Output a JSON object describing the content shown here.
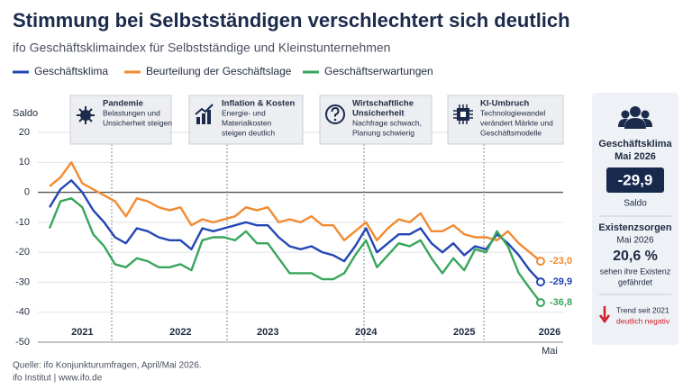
{
  "chart_data": {
    "type": "line",
    "title": "Stimmung bei Selbstständigen verschlechtert sich deutlich",
    "subtitle": "ifo Geschäftsklimaindex für Selbstständige und Kleinstunternehmen",
    "y_label": "Saldo",
    "categories": [
      null,
      null,
      null,
      "2021",
      null,
      null,
      null,
      null,
      null,
      null,
      null,
      null,
      "2022",
      null,
      null,
      null,
      null,
      null,
      null,
      null,
      "2023",
      null,
      null,
      null,
      null,
      null,
      null,
      null,
      null,
      "2024",
      null,
      null,
      null,
      null,
      null,
      null,
      null,
      null,
      "2025",
      null,
      null,
      null,
      null,
      null,
      null,
      "2026"
    ],
    "end_note": "Mai",
    "series": [
      {
        "name": "Geschäftsklima",
        "color": "#2346b5",
        "values": [
          -5,
          1,
          4,
          0,
          -6,
          -10,
          -15,
          -17,
          -12,
          -13,
          -15,
          -16,
          -16,
          -19,
          -12,
          -13,
          -12,
          -11,
          -10,
          -11,
          -11,
          -15,
          -18,
          -19,
          -18,
          -20,
          -21,
          -23,
          -18,
          -12,
          -20,
          -17,
          -14,
          -14,
          -12,
          -17,
          -20,
          -17,
          -21,
          -18,
          -19,
          -14,
          -17,
          -21,
          -26,
          -29.9
        ],
        "value_labels": [
          null,
          null,
          null,
          null,
          null,
          null,
          null,
          null,
          null,
          null,
          null,
          null,
          null,
          null,
          null,
          null,
          null,
          null,
          null,
          null,
          null,
          null,
          null,
          null,
          null,
          null,
          null,
          null,
          null,
          null,
          null,
          null,
          null,
          null,
          null,
          null,
          null,
          null,
          null,
          null,
          null,
          null,
          null,
          null,
          null,
          "-29,9"
        ]
      },
      {
        "name": "Beurteilung der Geschäftslage",
        "color": "#f28a30",
        "values": [
          2,
          5,
          10,
          3,
          1,
          -1,
          -3,
          -8,
          -2,
          -3,
          -5,
          -6,
          -5,
          -11,
          -9,
          -10,
          -9,
          -8,
          -5,
          -6,
          -5,
          -10,
          -9,
          -10,
          -8,
          -11,
          -11,
          -16,
          -13,
          -10,
          -16,
          -12,
          -9,
          -10,
          -7,
          -13,
          -13,
          -11,
          -14,
          -15,
          -15,
          -16,
          -13,
          -17,
          -20,
          -23.0
        ],
        "value_labels": [
          null,
          null,
          null,
          null,
          null,
          null,
          null,
          null,
          null,
          null,
          null,
          null,
          null,
          null,
          null,
          null,
          null,
          null,
          null,
          null,
          null,
          null,
          null,
          null,
          null,
          null,
          null,
          null,
          null,
          null,
          null,
          null,
          null,
          null,
          null,
          null,
          null,
          null,
          null,
          null,
          null,
          null,
          null,
          null,
          null,
          "-23,0"
        ]
      },
      {
        "name": "Geschäftserwartungen",
        "color": "#38a65c",
        "values": [
          -12,
          -3,
          -2,
          -5,
          -14,
          -18,
          -24,
          -25,
          -22,
          -23,
          -25,
          -25,
          -24,
          -26,
          -16,
          -15,
          -15,
          -16,
          -13,
          -17,
          -17,
          -22,
          -27,
          -27,
          -27,
          -29,
          -29,
          -27,
          -21,
          -16,
          -25,
          -21,
          -17,
          -18,
          -16,
          -22,
          -27,
          -22,
          -26,
          -19,
          -20,
          -13,
          -18,
          -27,
          -32,
          -36.8
        ],
        "value_labels": [
          null,
          null,
          null,
          null,
          null,
          null,
          null,
          null,
          null,
          null,
          null,
          null,
          null,
          null,
          null,
          null,
          null,
          null,
          null,
          null,
          null,
          null,
          null,
          null,
          null,
          null,
          null,
          null,
          null,
          null,
          null,
          null,
          null,
          null,
          null,
          null,
          null,
          null,
          null,
          null,
          null,
          null,
          null,
          null,
          null,
          "-36,8"
        ]
      }
    ],
    "ylim": [
      -50,
      20
    ],
    "yticks": [
      -50,
      -40,
      -30,
      -20,
      -10,
      0,
      10,
      20
    ],
    "grid": true,
    "annotations": [
      {
        "title": [
          "Pandemie"
        ],
        "text": [
          "Belastungen und",
          "Unsicherheit steigen"
        ]
      },
      {
        "title": [
          "Inflation & Kosten"
        ],
        "text": [
          "Energie- und",
          "Materialkosten",
          "steigen deutlich"
        ]
      },
      {
        "title": [
          "Wirtschaftliche",
          "Unsicherheit"
        ],
        "text": [
          "Nachfrage schwach,",
          "Planung schwierig"
        ]
      },
      {
        "title": [
          "KI-Umbruch"
        ],
        "text": [
          "Technologiewandel",
          "verändert Märkte und",
          "Geschäftsmodelle"
        ]
      }
    ],
    "source": [
      "Quelle: ifo Konjunkturumfragen, April/Mai 2026.",
      "ifo Institut | www.ifo.de"
    ]
  },
  "panel": {
    "heading": [
      "Geschäftsklima",
      "Mai 2026"
    ],
    "value": "-29,9",
    "value_caption": "Saldo",
    "heading2": "Existenzsorgen",
    "date2": "Mai 2026",
    "value2": "20,6 %",
    "caption2": [
      "sehen ihre Existenz",
      "gefährdet"
    ],
    "trend": [
      "Trend seit 2021",
      "deutlich negativ"
    ]
  }
}
